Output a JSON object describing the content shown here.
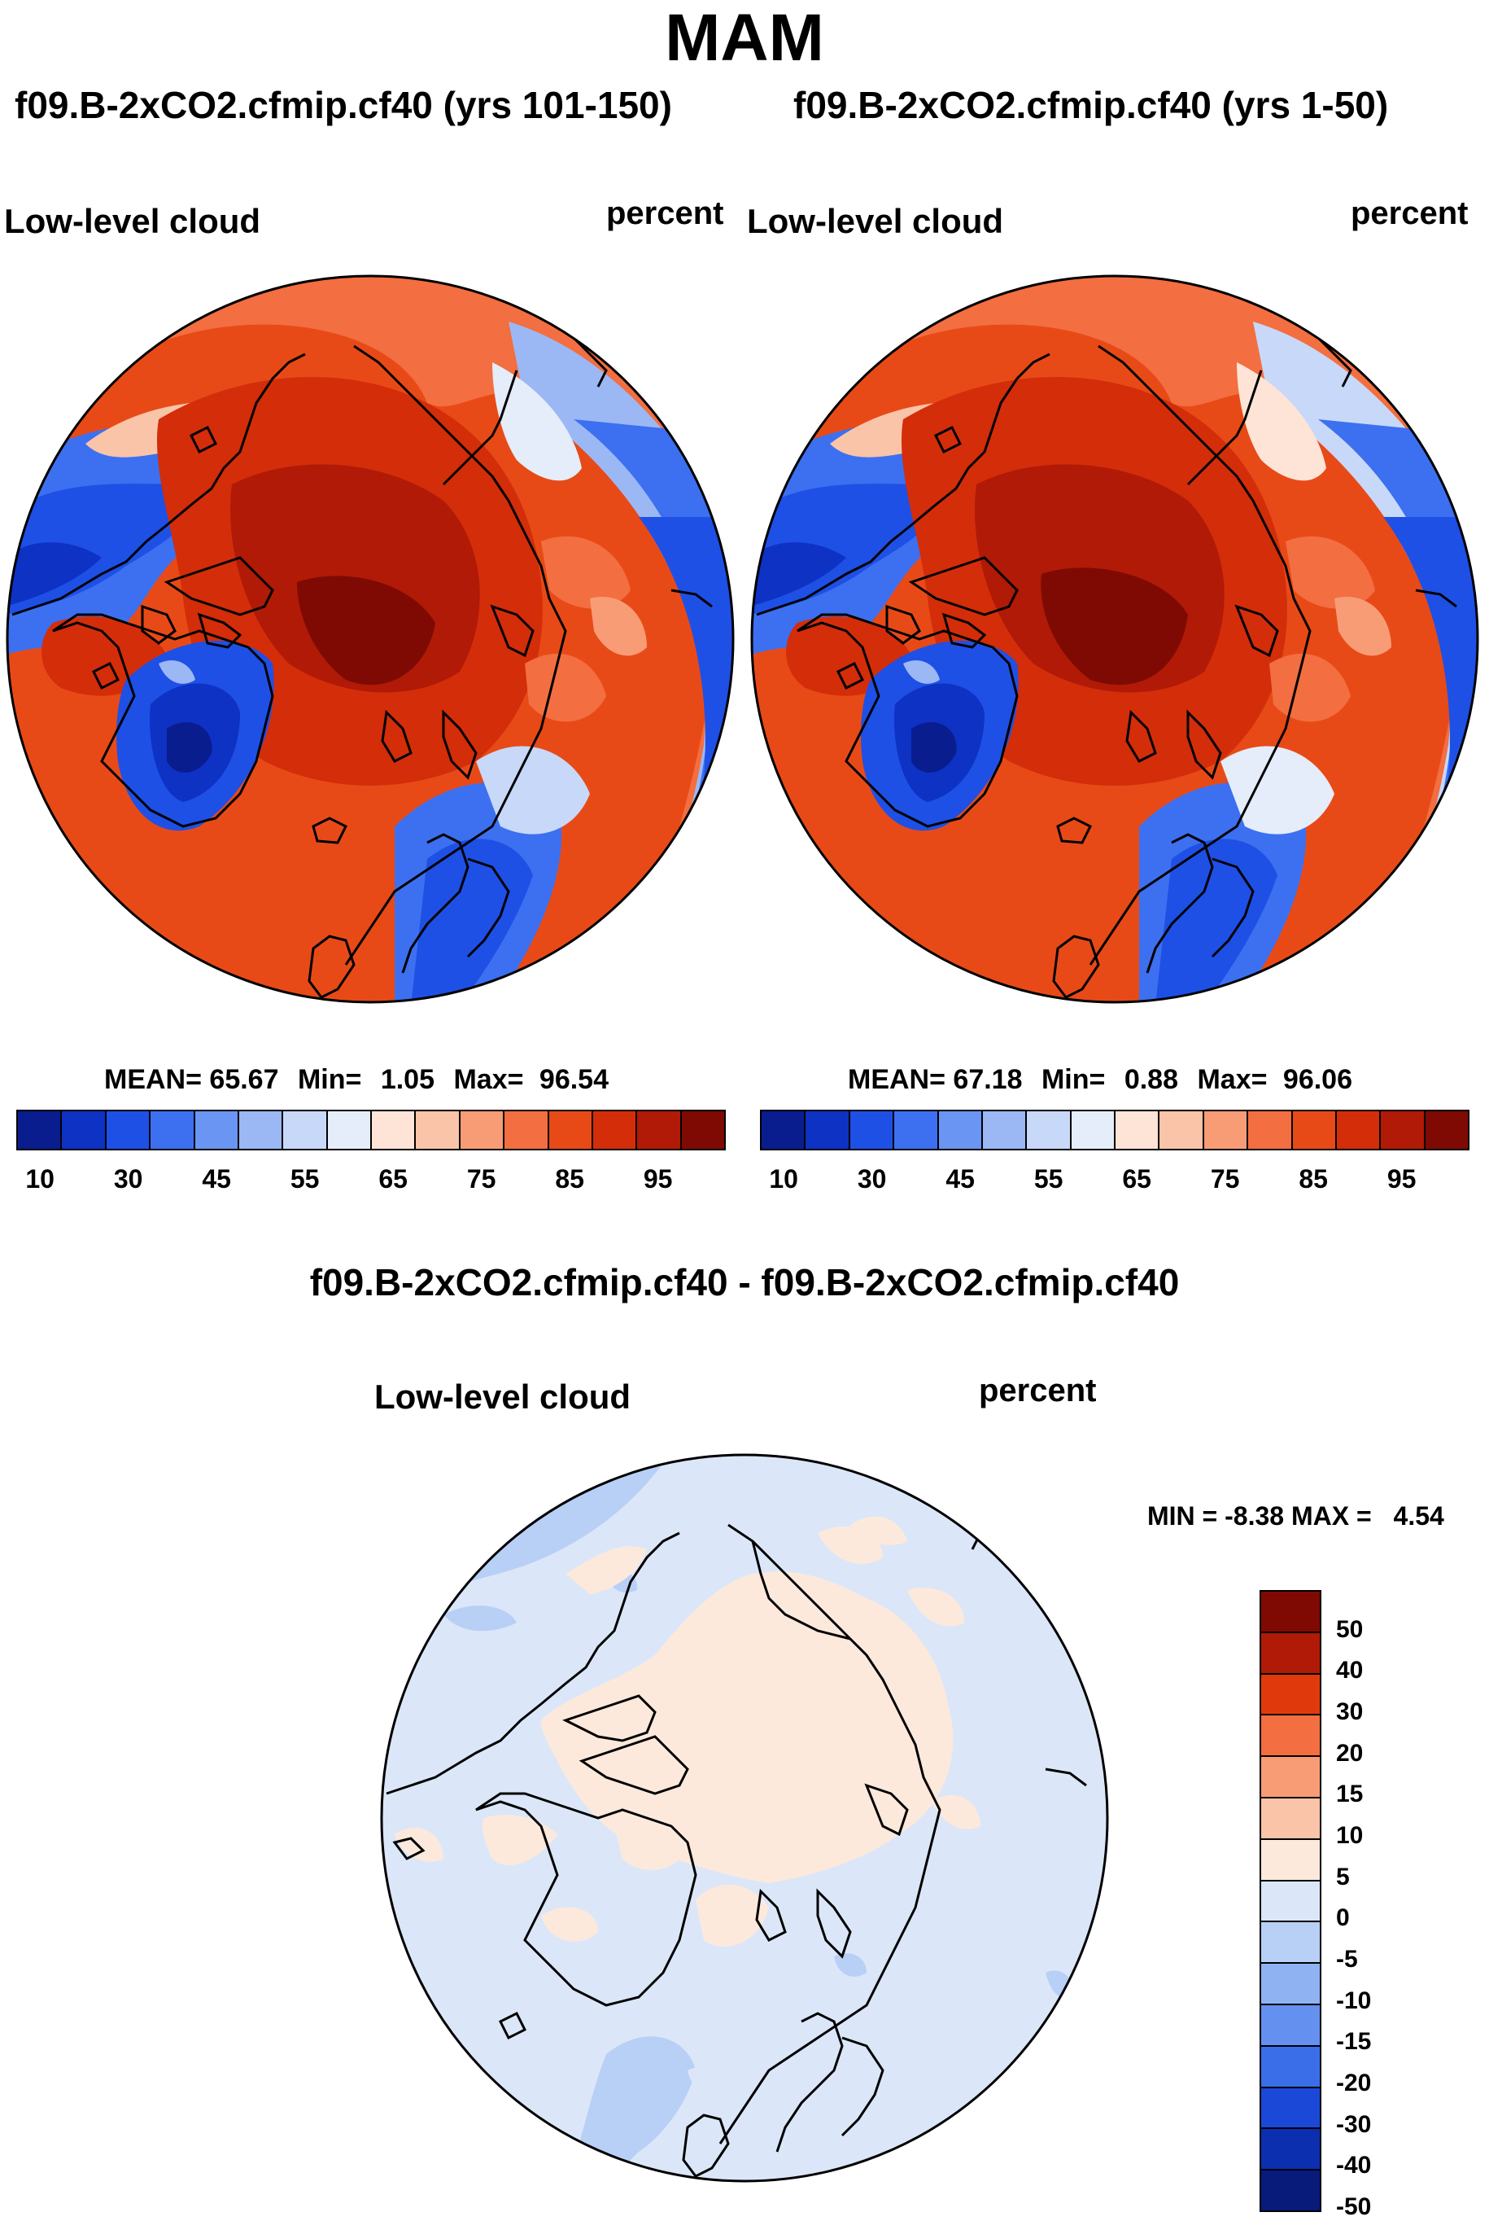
{
  "season": "MAM",
  "left_panel": {
    "title": "f09.B-2xCO2.cfmip.cf40 (yrs 101-150)",
    "variable": "Low-level cloud",
    "units": "percent",
    "mean_label": "MEAN=",
    "mean": "65.67",
    "min_label": "Min=",
    "min": "1.05",
    "max_label": "Max=",
    "max": "96.54"
  },
  "right_panel": {
    "title": "f09.B-2xCO2.cfmip.cf40 (yrs 1-50)",
    "variable": "Low-level cloud",
    "units": "percent",
    "mean_label": "MEAN=",
    "mean": "67.18",
    "min_label": "Min=",
    "min": "0.88",
    "max_label": "Max=",
    "max": "96.06"
  },
  "diff_panel": {
    "title": "f09.B-2xCO2.cfmip.cf40 - f09.B-2xCO2.cfmip.cf40",
    "variable": "Low-level cloud",
    "units": "percent",
    "min_label": "MIN =",
    "min": "-8.38",
    "max_label": "MAX =",
    "max": "4.54"
  },
  "colorbar_abs": {
    "ticks": [
      "10",
      "30",
      "45",
      "55",
      "65",
      "75",
      "85",
      "95"
    ],
    "colors": [
      "#0a1d8f",
      "#0d32c4",
      "#1e50e6",
      "#3c70f0",
      "#6a95f2",
      "#9bb8f5",
      "#c8d8f8",
      "#e4edf9",
      "#fde4d6",
      "#fac4a8",
      "#f89c76",
      "#f36e40",
      "#e84a17",
      "#d32d0a",
      "#b01a06",
      "#7e0a03"
    ]
  },
  "colorbar_diff": {
    "ticks": [
      "50",
      "40",
      "30",
      "20",
      "15",
      "10",
      "5",
      "0",
      "-5",
      "-10",
      "-15",
      "-20",
      "-30",
      "-40",
      "-50"
    ],
    "colors": [
      "#7e0a03",
      "#b01a06",
      "#e03a0c",
      "#f36e40",
      "#f89c76",
      "#fac4a8",
      "#fde9dc",
      "#dbe7f8",
      "#b8cff6",
      "#8fb2f2",
      "#6490ef",
      "#3a6ee8",
      "#1b48d6",
      "#0c2fb0",
      "#081a7a"
    ]
  },
  "chart_data": [
    {
      "type": "heatmap",
      "projection": "north-polar-stereographic",
      "title": "f09.B-2xCO2.cfmip.cf40 (yrs 101-150)",
      "variable": "Low-level cloud",
      "units": "percent",
      "mean": 65.67,
      "min": 1.05,
      "max": 96.54,
      "levels": [
        10,
        15,
        20,
        25,
        30,
        35,
        40,
        45,
        50,
        55,
        60,
        65,
        70,
        75,
        80,
        85,
        90,
        95
      ]
    },
    {
      "type": "heatmap",
      "projection": "north-polar-stereographic",
      "title": "f09.B-2xCO2.cfmip.cf40 (yrs 1-50)",
      "variable": "Low-level cloud",
      "units": "percent",
      "mean": 67.18,
      "min": 0.88,
      "max": 96.06,
      "levels": [
        10,
        15,
        20,
        25,
        30,
        35,
        40,
        45,
        50,
        55,
        60,
        65,
        70,
        75,
        80,
        85,
        90,
        95
      ]
    },
    {
      "type": "heatmap",
      "projection": "north-polar-stereographic",
      "title": "f09.B-2xCO2.cfmip.cf40 - f09.B-2xCO2.cfmip.cf40",
      "variable": "Low-level cloud",
      "units": "percent",
      "min": -8.38,
      "max": 4.54,
      "levels": [
        -50,
        -40,
        -30,
        -20,
        -15,
        -10,
        -5,
        0,
        5,
        10,
        15,
        20,
        30,
        40,
        50
      ]
    }
  ]
}
